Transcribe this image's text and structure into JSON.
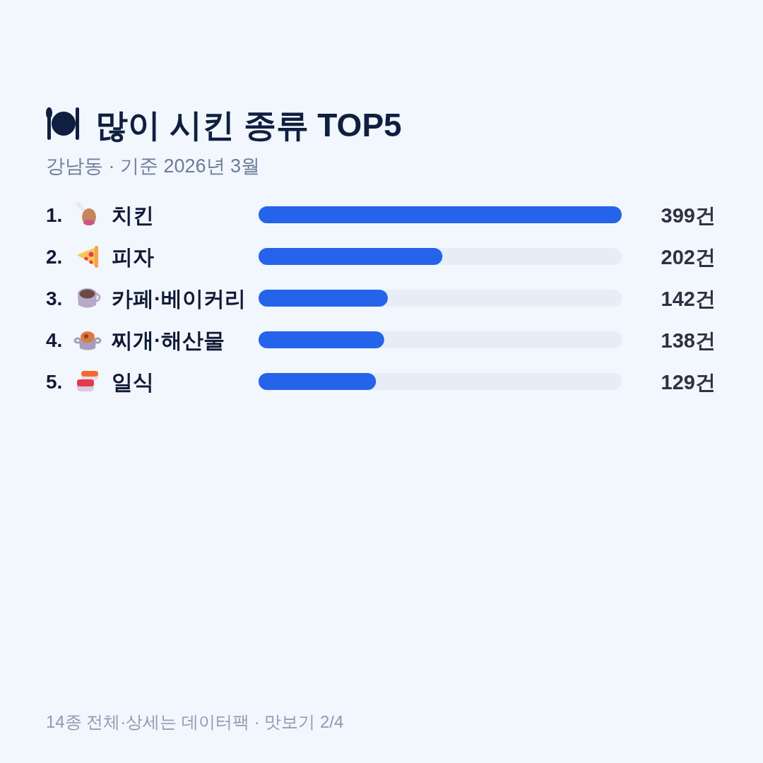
{
  "chart_data": {
    "type": "bar",
    "orientation": "horizontal",
    "title": "많이 시킨 종류 TOP5",
    "subtitle": "강남동 · 기준 2026년 3월",
    "categories": [
      "1. 치킨",
      "2. 피자",
      "3. 카페·베이커리",
      "4. 찌개·해산물",
      "5. 일식"
    ],
    "values": [
      399,
      202,
      142,
      138,
      129
    ],
    "value_labels": [
      "399건",
      "202건",
      "142건",
      "138건",
      "129건"
    ],
    "color": "#2563eb",
    "annotations": [
      "14종 전체·상세는 데이터팩 · 맛보기 2/4"
    ]
  }
}
